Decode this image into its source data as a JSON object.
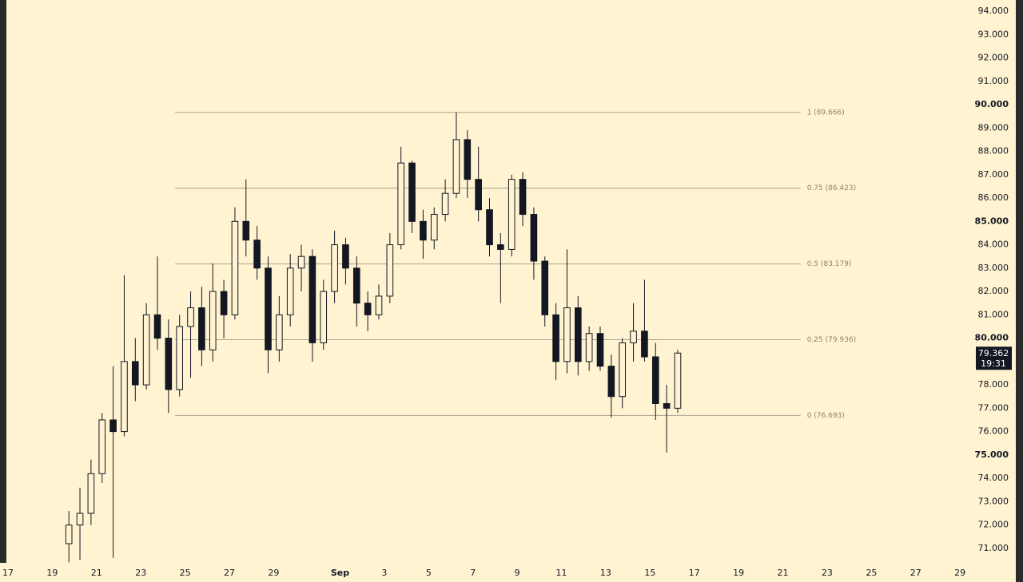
{
  "chart_data": {
    "type": "candlestick",
    "x": [
      2.75,
      3.25,
      3.75,
      4.25,
      4.75,
      5.25,
      5.75,
      6.25,
      6.75,
      7.25,
      7.75,
      8.25,
      8.75,
      9.25,
      9.75,
      10.25,
      10.75,
      11.25,
      11.75,
      12.25,
      12.75,
      13.25,
      13.75,
      14.25,
      14.75,
      15.25,
      15.75,
      16.25,
      16.75,
      17.25,
      17.75,
      18.25,
      18.75,
      19.25,
      19.75,
      20.25,
      20.75,
      21.25,
      21.75,
      22.25,
      22.75,
      23.25,
      23.75,
      24.25,
      24.75,
      25.25,
      25.75,
      26.25,
      26.75,
      27.25,
      27.75,
      28.25,
      28.75,
      29.25,
      29.75,
      30.25
    ],
    "open": [
      71.2,
      72.0,
      72.5,
      74.2,
      76.5,
      76.0,
      79.0,
      78.0,
      81.0,
      80.0,
      77.8,
      80.5,
      81.3,
      79.5,
      82.0,
      81.0,
      85.0,
      84.2,
      83.0,
      79.5,
      81.0,
      83.0,
      83.5,
      79.8,
      82.0,
      84.0,
      83.0,
      81.5,
      81.0,
      81.8,
      84.0,
      87.5,
      85.0,
      84.2,
      85.3,
      86.2,
      88.5,
      86.8,
      85.5,
      84.0,
      83.8,
      86.8,
      85.3,
      83.3,
      81.0,
      79.0,
      81.3,
      79.0,
      80.2,
      78.8,
      77.5,
      79.8,
      80.3,
      79.2,
      77.2,
      77.0
    ],
    "high": [
      72.6,
      73.6,
      74.8,
      76.8,
      78.8,
      82.7,
      80.0,
      81.5,
      83.5,
      80.8,
      81.0,
      82.0,
      82.2,
      83.2,
      82.5,
      85.6,
      86.8,
      84.8,
      83.5,
      81.8,
      83.6,
      84.0,
      83.8,
      82.5,
      84.6,
      84.3,
      83.5,
      82.0,
      82.3,
      84.5,
      88.2,
      87.6,
      85.5,
      85.6,
      86.8,
      89.666,
      88.9,
      88.2,
      86.0,
      84.5,
      87.0,
      87.1,
      85.6,
      83.5,
      81.5,
      83.8,
      81.8,
      80.5,
      80.5,
      79.3,
      80.0,
      81.5,
      82.5,
      79.8,
      78.0,
      79.5
    ],
    "low": [
      70.4,
      70.5,
      72.0,
      73.8,
      70.6,
      75.8,
      77.3,
      77.8,
      79.5,
      76.8,
      77.5,
      78.3,
      78.8,
      79.0,
      80.0,
      80.8,
      83.5,
      82.5,
      78.5,
      79.0,
      80.5,
      82.0,
      79.0,
      79.5,
      81.5,
      82.3,
      80.5,
      80.3,
      80.8,
      81.5,
      83.8,
      84.5,
      83.4,
      83.8,
      85.0,
      86.0,
      86.0,
      85.0,
      83.5,
      81.5,
      83.5,
      84.8,
      82.5,
      80.5,
      78.2,
      78.5,
      78.4,
      78.6,
      78.6,
      76.6,
      77.0,
      79.0,
      79.0,
      76.5,
      75.1,
      76.8
    ],
    "close": [
      72.0,
      72.5,
      74.2,
      76.5,
      76.0,
      79.0,
      78.0,
      81.0,
      80.0,
      77.8,
      80.5,
      81.3,
      79.5,
      82.0,
      81.0,
      85.0,
      84.2,
      83.0,
      79.5,
      81.0,
      83.0,
      83.5,
      79.8,
      82.0,
      84.0,
      83.0,
      81.5,
      81.0,
      81.8,
      84.0,
      87.5,
      85.0,
      84.2,
      85.3,
      86.2,
      88.5,
      86.8,
      85.5,
      84.0,
      83.8,
      86.8,
      85.3,
      83.3,
      81.0,
      79.0,
      81.3,
      79.0,
      80.2,
      78.8,
      77.5,
      79.8,
      80.3,
      79.2,
      77.2,
      77.0,
      79.362
    ],
    "up_color": "#fff3d1",
    "down_color": "#131722",
    "line_color": "#131722",
    "xlim": [
      0,
      43.5
    ],
    "xticks": [
      {
        "value": 0,
        "label": "17"
      },
      {
        "value": 2,
        "label": "19"
      },
      {
        "value": 4,
        "label": "21"
      },
      {
        "value": 6,
        "label": "23"
      },
      {
        "value": 8,
        "label": "25"
      },
      {
        "value": 10,
        "label": "27"
      },
      {
        "value": 12,
        "label": "29"
      },
      {
        "value": 15,
        "label": "Sep"
      },
      {
        "value": 17,
        "label": "3"
      },
      {
        "value": 19,
        "label": "5"
      },
      {
        "value": 21,
        "label": "7"
      },
      {
        "value": 23,
        "label": "9"
      },
      {
        "value": 25,
        "label": "11"
      },
      {
        "value": 27,
        "label": "13"
      },
      {
        "value": 29,
        "label": "15"
      },
      {
        "value": 31,
        "label": "17"
      },
      {
        "value": 33,
        "label": "19"
      },
      {
        "value": 35,
        "label": "21"
      },
      {
        "value": 37,
        "label": "23"
      },
      {
        "value": 39,
        "label": "25"
      },
      {
        "value": 41,
        "label": "27"
      },
      {
        "value": 43,
        "label": "29"
      }
    ],
    "ylim": [
      70.38,
      94.48
    ],
    "yticks": [
      {
        "value": 71,
        "label": "71.000"
      },
      {
        "value": 72,
        "label": "72.000"
      },
      {
        "value": 73,
        "label": "73.000"
      },
      {
        "value": 74,
        "label": "74.000"
      },
      {
        "value": 75,
        "label": "75.000"
      },
      {
        "value": 76,
        "label": "76.000"
      },
      {
        "value": 77,
        "label": "77.000"
      },
      {
        "value": 78,
        "label": "78.000"
      },
      {
        "value": 80,
        "label": "80.000"
      },
      {
        "value": 81,
        "label": "81.000"
      },
      {
        "value": 82,
        "label": "82.000"
      },
      {
        "value": 83,
        "label": "83.000"
      },
      {
        "value": 84,
        "label": "84.000"
      },
      {
        "value": 85,
        "label": "85.000"
      },
      {
        "value": 86,
        "label": "86.000"
      },
      {
        "value": 87,
        "label": "87.000"
      },
      {
        "value": 88,
        "label": "88.000"
      },
      {
        "value": 89,
        "label": "89.000"
      },
      {
        "value": 90,
        "label": "90.000"
      },
      {
        "value": 91,
        "label": "91.000"
      },
      {
        "value": 92,
        "label": "92.000"
      },
      {
        "value": 93,
        "label": "93.000"
      },
      {
        "value": 94,
        "label": "94.000"
      }
    ],
    "fib_x_range": [
      7.55,
      35.8
    ],
    "fib_levels": [
      {
        "value": 89.666,
        "label": "1 (89.666)"
      },
      {
        "value": 86.423,
        "label": "0.75 (86.423)"
      },
      {
        "value": 83.179,
        "label": "0.5 (83.179)"
      },
      {
        "value": 79.936,
        "label": "0.25 (79.936)"
      },
      {
        "value": 76.693,
        "label": "0 (76.693)"
      }
    ],
    "last_price": {
      "value": 79.362,
      "label": "79.362"
    },
    "countdown": "19:31"
  }
}
